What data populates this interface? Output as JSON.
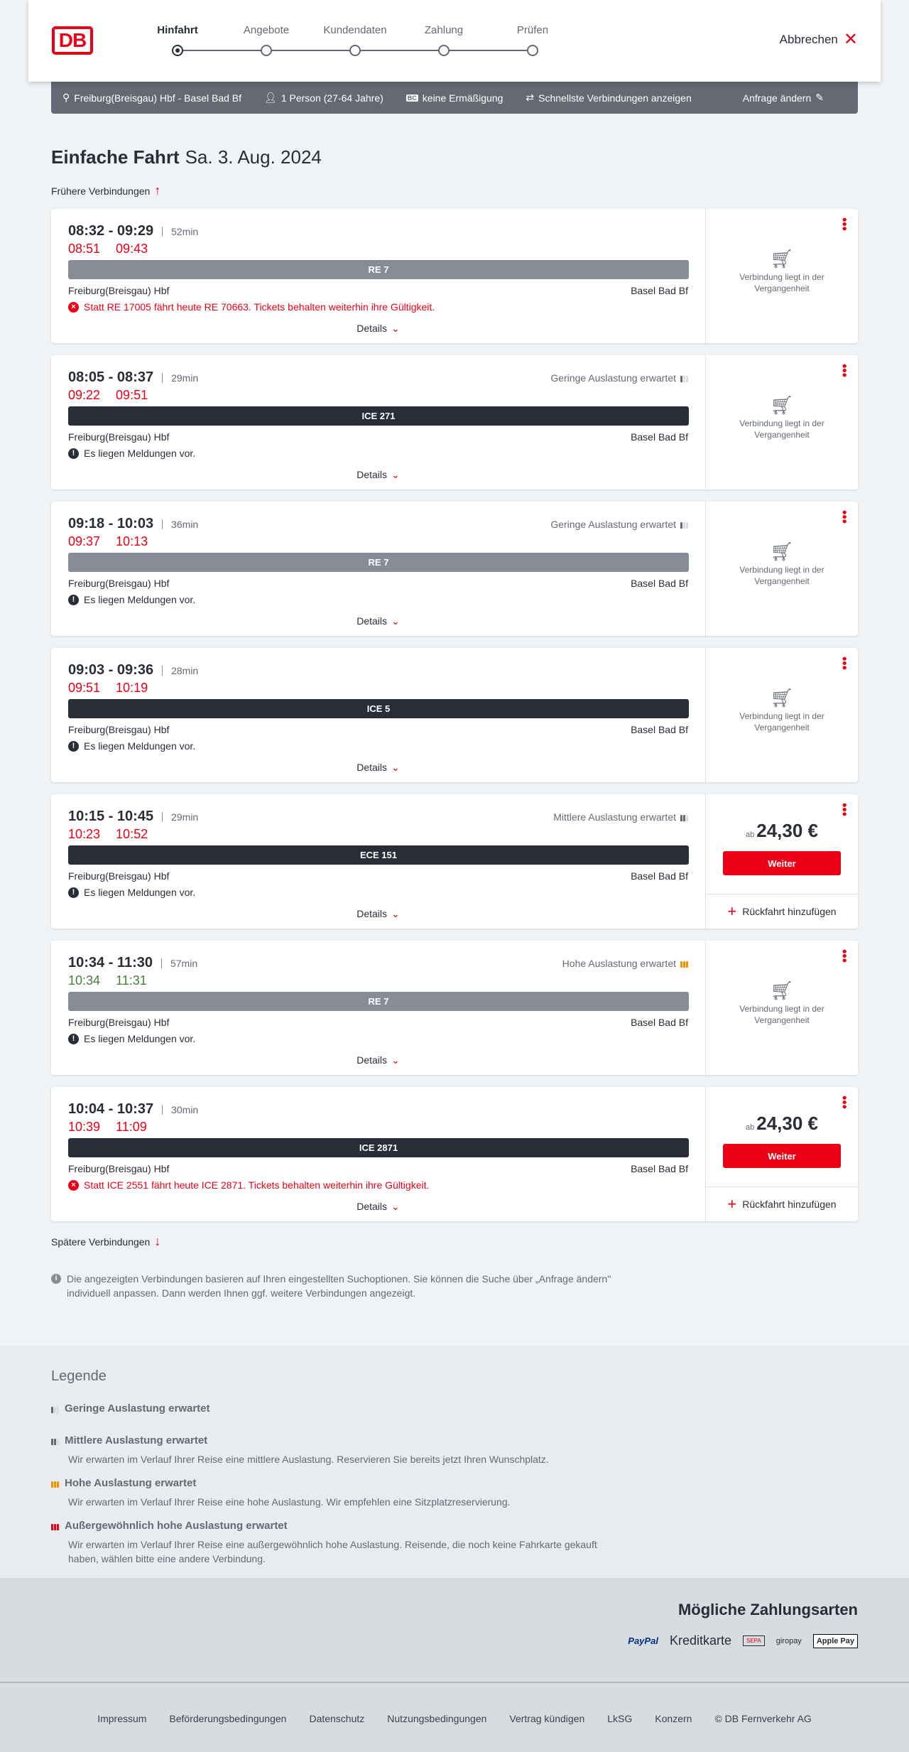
{
  "header": {
    "logo": "DB",
    "steps": [
      "Hinfahrt",
      "Angebote",
      "Kundendaten",
      "Zahlung",
      "Prüfen"
    ],
    "active_step": 0,
    "cancel": "Abbrechen"
  },
  "search": {
    "route": "Freiburg(Breisgau) Hbf - Basel Bad Bf",
    "persons": "1 Person (27-64 Jahre)",
    "discount_badge": "BC",
    "discount": "keine Ermäßigung",
    "fastest": "Schnellste Verbindungen anzeigen",
    "edit": "Anfrage ändern"
  },
  "title": {
    "main": "Einfache Fahrt",
    "date": "Sa. 3. Aug. 2024"
  },
  "earlier": "Frühere Verbindungen",
  "later": "Spätere Verbindungen",
  "labels": {
    "details": "Details",
    "past": "Verbindung liegt in der Vergangenheit",
    "ab": "ab",
    "weiter": "Weiter",
    "return": "Rückfahrt hinzufügen"
  },
  "colors": {
    "red": "#ec0016",
    "green": "#408335",
    "regional": "#878c96",
    "longdistance": "#282d37",
    "high_load": "#f39200"
  },
  "connections": [
    {
      "time": "08:32 - 09:29",
      "duration": "52min",
      "actual": [
        "08:51",
        "09:43"
      ],
      "status": "late",
      "occupancy": "",
      "occ_level": 0,
      "train": "RE 7",
      "train_type": "regional",
      "from": "Freiburg(Breisgau) Hbf",
      "to": "Basel Bad Bf",
      "message": "Statt RE 17005 fährt heute RE 70663. Tickets behalten weiterhin ihre Gültigkeit.",
      "message_type": "error",
      "bookable": false
    },
    {
      "time": "08:05 - 08:37",
      "duration": "29min",
      "actual": [
        "09:22",
        "09:51"
      ],
      "status": "late",
      "occupancy": "Geringe Auslastung erwartet",
      "occ_level": 1,
      "train": "ICE 271",
      "train_type": "longdistance",
      "from": "Freiburg(Breisgau) Hbf",
      "to": "Basel Bad Bf",
      "message": "Es liegen Meldungen vor.",
      "message_type": "info",
      "bookable": false
    },
    {
      "time": "09:18 - 10:03",
      "duration": "36min",
      "actual": [
        "09:37",
        "10:13"
      ],
      "status": "late",
      "occupancy": "Geringe Auslastung erwartet",
      "occ_level": 1,
      "train": "RE 7",
      "train_type": "regional",
      "from": "Freiburg(Breisgau) Hbf",
      "to": "Basel Bad Bf",
      "message": "Es liegen Meldungen vor.",
      "message_type": "info",
      "bookable": false
    },
    {
      "time": "09:03 - 09:36",
      "duration": "28min",
      "actual": [
        "09:51",
        "10:19"
      ],
      "status": "late",
      "occupancy": "",
      "occ_level": 0,
      "train": "ICE 5",
      "train_type": "longdistance",
      "from": "Freiburg(Breisgau) Hbf",
      "to": "Basel Bad Bf",
      "message": "Es liegen Meldungen vor.",
      "message_type": "info",
      "bookable": false
    },
    {
      "time": "10:15 - 10:45",
      "duration": "29min",
      "actual": [
        "10:23",
        "10:52"
      ],
      "status": "late",
      "occupancy": "Mittlere Auslastung erwartet",
      "occ_level": 2,
      "train": "ECE 151",
      "train_type": "longdistance",
      "from": "Freiburg(Breisgau) Hbf",
      "to": "Basel Bad Bf",
      "message": "Es liegen Meldungen vor.",
      "message_type": "info",
      "bookable": true,
      "price": "24,30 €"
    },
    {
      "time": "10:34 - 11:30",
      "duration": "57min",
      "actual": [
        "10:34",
        "11:31"
      ],
      "status": "ok",
      "occupancy": "Hohe Auslastung erwartet",
      "occ_level": 3,
      "train": "RE 7",
      "train_type": "regional",
      "from": "Freiburg(Breisgau) Hbf",
      "to": "Basel Bad Bf",
      "message": "Es liegen Meldungen vor.",
      "message_type": "info",
      "bookable": false
    },
    {
      "time": "10:04 - 10:37",
      "duration": "30min",
      "actual": [
        "10:39",
        "11:09"
      ],
      "status": "late",
      "occupancy": "",
      "occ_level": 0,
      "train": "ICE 2871",
      "train_type": "longdistance",
      "from": "Freiburg(Breisgau) Hbf",
      "to": "Basel Bad Bf",
      "message": "Statt ICE 2551 fährt heute ICE 2871. Tickets behalten weiterhin ihre Gültigkeit.",
      "message_type": "error",
      "bookable": true,
      "price": "24,30 €"
    }
  ],
  "note": "Die angezeigten Verbindungen basieren auf Ihren eingestellten Suchoptionen. Sie können die Suche über „Anfrage ändern\" individuell anpassen. Dann werden Ihnen ggf. weitere Verbindungen angezeigt.",
  "legend": {
    "title": "Legende",
    "items": [
      {
        "title": "Geringe Auslastung erwartet",
        "text": ""
      },
      {
        "title": "Mittlere Auslastung erwartet",
        "text": "Wir erwarten im Verlauf Ihrer Reise eine mittlere Auslastung. Reservieren Sie bereits jetzt Ihren Wunschplatz."
      },
      {
        "title": "Hohe Auslastung erwartet",
        "text": "Wir erwarten im Verlauf Ihrer Reise eine hohe Auslastung. Wir empfehlen eine Sitzplatzreservierung."
      },
      {
        "title": "Außergewöhnlich hohe Auslastung erwartet",
        "text": "Wir erwarten im Verlauf Ihrer Reise eine außergewöhnlich hohe Auslastung. Reisende, die noch keine Fahrkarte gekauft haben, wählen bitte eine andere Verbindung."
      }
    ]
  },
  "payment": {
    "title": "Mögliche Zahlungsarten",
    "methods": [
      "PayPal",
      "Kreditkarte",
      "SEPA",
      "giropay",
      "Apple Pay"
    ]
  },
  "footer": [
    "Impressum",
    "Beförderungsbedingungen",
    "Datenschutz",
    "Nutzungsbedingungen",
    "Vertrag kündigen",
    "LkSG",
    "Konzern",
    "© DB Fernverkehr AG"
  ]
}
